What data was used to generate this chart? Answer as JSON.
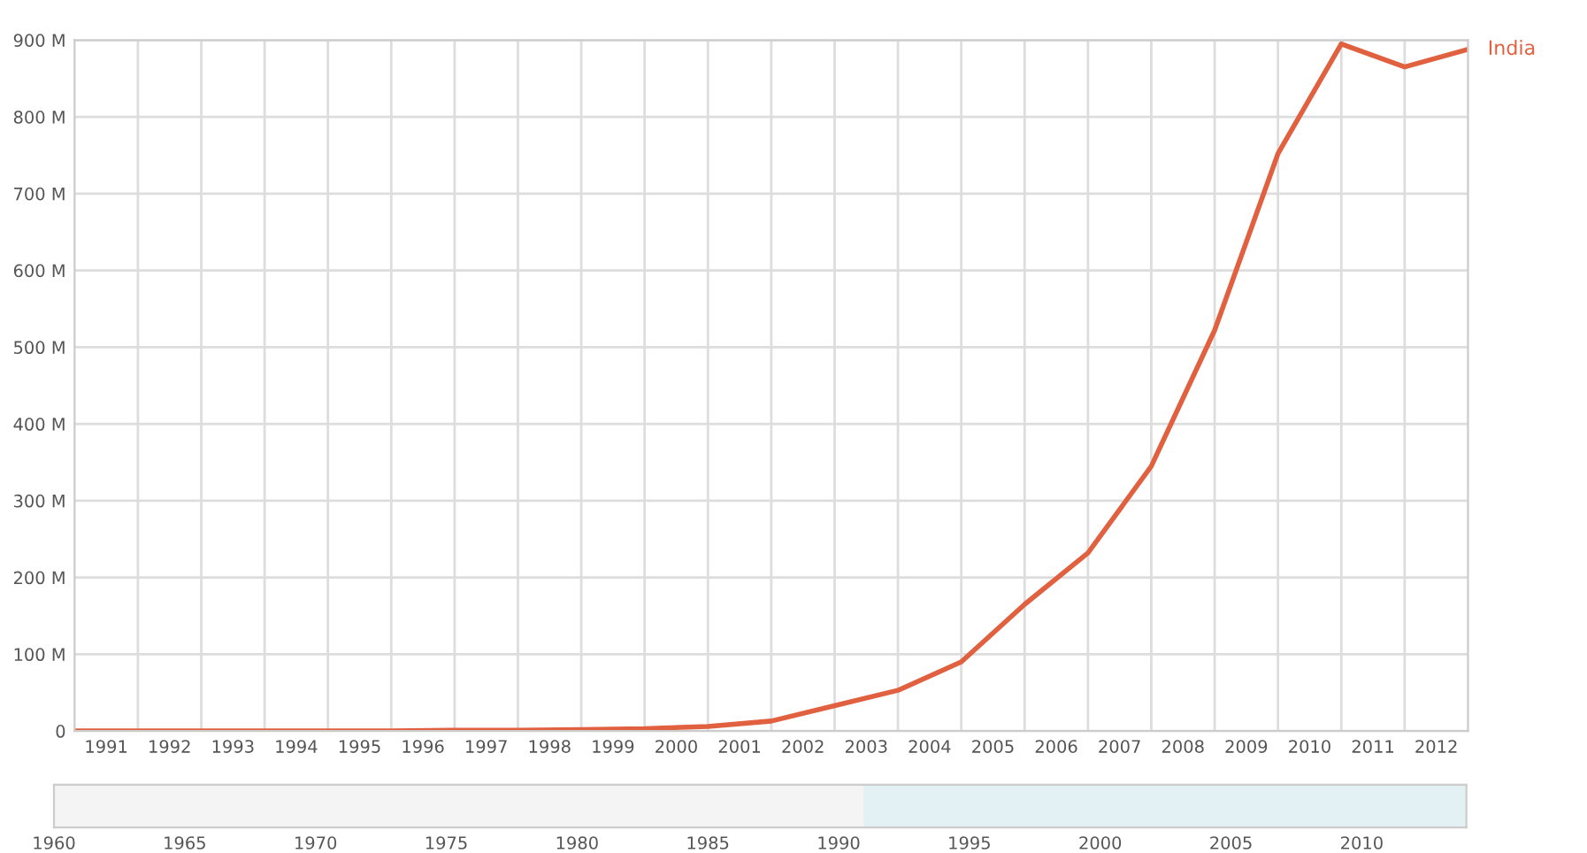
{
  "chart_data": [
    {
      "type": "line",
      "x": [
        1991,
        1992,
        1993,
        1994,
        1995,
        1996,
        1997,
        1998,
        1999,
        2000,
        2001,
        2002,
        2003,
        2004,
        2005,
        2006,
        2007,
        2008,
        2009,
        2010,
        2011,
        2012,
        2013
      ],
      "series": [
        {
          "name": "India",
          "color": "#e0603f",
          "values": [
            0,
            0,
            0,
            0,
            0,
            0,
            1,
            1,
            2,
            3,
            6,
            13,
            33,
            53,
            90,
            165,
            232,
            345,
            522,
            752,
            895,
            865,
            888
          ]
        }
      ],
      "xlim": [
        1991,
        2013
      ],
      "xticks": [
        {
          "value": 1991.5,
          "label": "1991"
        },
        {
          "value": 1992.5,
          "label": "1992"
        },
        {
          "value": 1993.5,
          "label": "1993"
        },
        {
          "value": 1994.5,
          "label": "1994"
        },
        {
          "value": 1995.5,
          "label": "1995"
        },
        {
          "value": 1996.5,
          "label": "1996"
        },
        {
          "value": 1997.5,
          "label": "1997"
        },
        {
          "value": 1998.5,
          "label": "1998"
        },
        {
          "value": 1999.5,
          "label": "1999"
        },
        {
          "value": 2000.5,
          "label": "2000"
        },
        {
          "value": 2001.5,
          "label": "2001"
        },
        {
          "value": 2002.5,
          "label": "2002"
        },
        {
          "value": 2003.5,
          "label": "2003"
        },
        {
          "value": 2004.5,
          "label": "2004"
        },
        {
          "value": 2005.5,
          "label": "2005"
        },
        {
          "value": 2006.5,
          "label": "2006"
        },
        {
          "value": 2007.5,
          "label": "2007"
        },
        {
          "value": 2008.5,
          "label": "2008"
        },
        {
          "value": 2009.5,
          "label": "2009"
        },
        {
          "value": 2010.5,
          "label": "2010"
        },
        {
          "value": 2011.5,
          "label": "2011"
        },
        {
          "value": 2012.5,
          "label": "2012"
        },
        {
          "value": 1992,
          "label": null
        },
        {
          "value": 1993,
          "label": null
        },
        {
          "value": 1994,
          "label": null
        },
        {
          "value": 1995,
          "label": null
        },
        {
          "value": 1996,
          "label": null
        },
        {
          "value": 1997,
          "label": null
        },
        {
          "value": 1998,
          "label": null
        },
        {
          "value": 1999,
          "label": null
        },
        {
          "value": 2000,
          "label": null
        },
        {
          "value": 2001,
          "label": null
        },
        {
          "value": 2002,
          "label": null
        },
        {
          "value": 2003,
          "label": null
        },
        {
          "value": 2004,
          "label": null
        },
        {
          "value": 2005,
          "label": null
        },
        {
          "value": 2006,
          "label": null
        },
        {
          "value": 2007,
          "label": null
        },
        {
          "value": 2008,
          "label": null
        },
        {
          "value": 2009,
          "label": null
        },
        {
          "value": 2010,
          "label": null
        },
        {
          "value": 2011,
          "label": null
        },
        {
          "value": 2012,
          "label": null
        }
      ],
      "ylim": [
        0,
        900
      ],
      "yticks": [
        0,
        {
          "value": 100,
          "label": "100 M"
        },
        {
          "value": 200,
          "label": "200 M"
        },
        {
          "value": 300,
          "label": "300 M"
        },
        {
          "value": 400,
          "label": "400 M"
        },
        {
          "value": 500,
          "label": "500 M"
        },
        {
          "value": 600,
          "label": "600 M"
        },
        {
          "value": 700,
          "label": "700 M"
        },
        {
          "value": 800,
          "label": "800 M"
        },
        {
          "value": 900,
          "label": "900 M"
        }
      ],
      "x2lim": [
        1960,
        2014
      ],
      "x2ticks": [
        1960,
        1965,
        1970,
        1975,
        1980,
        1985,
        1990,
        1995,
        2000,
        2005,
        2010
      ],
      "grid": true,
      "legend": false,
      "marker": "none",
      "line_style": "solid"
    }
  ]
}
